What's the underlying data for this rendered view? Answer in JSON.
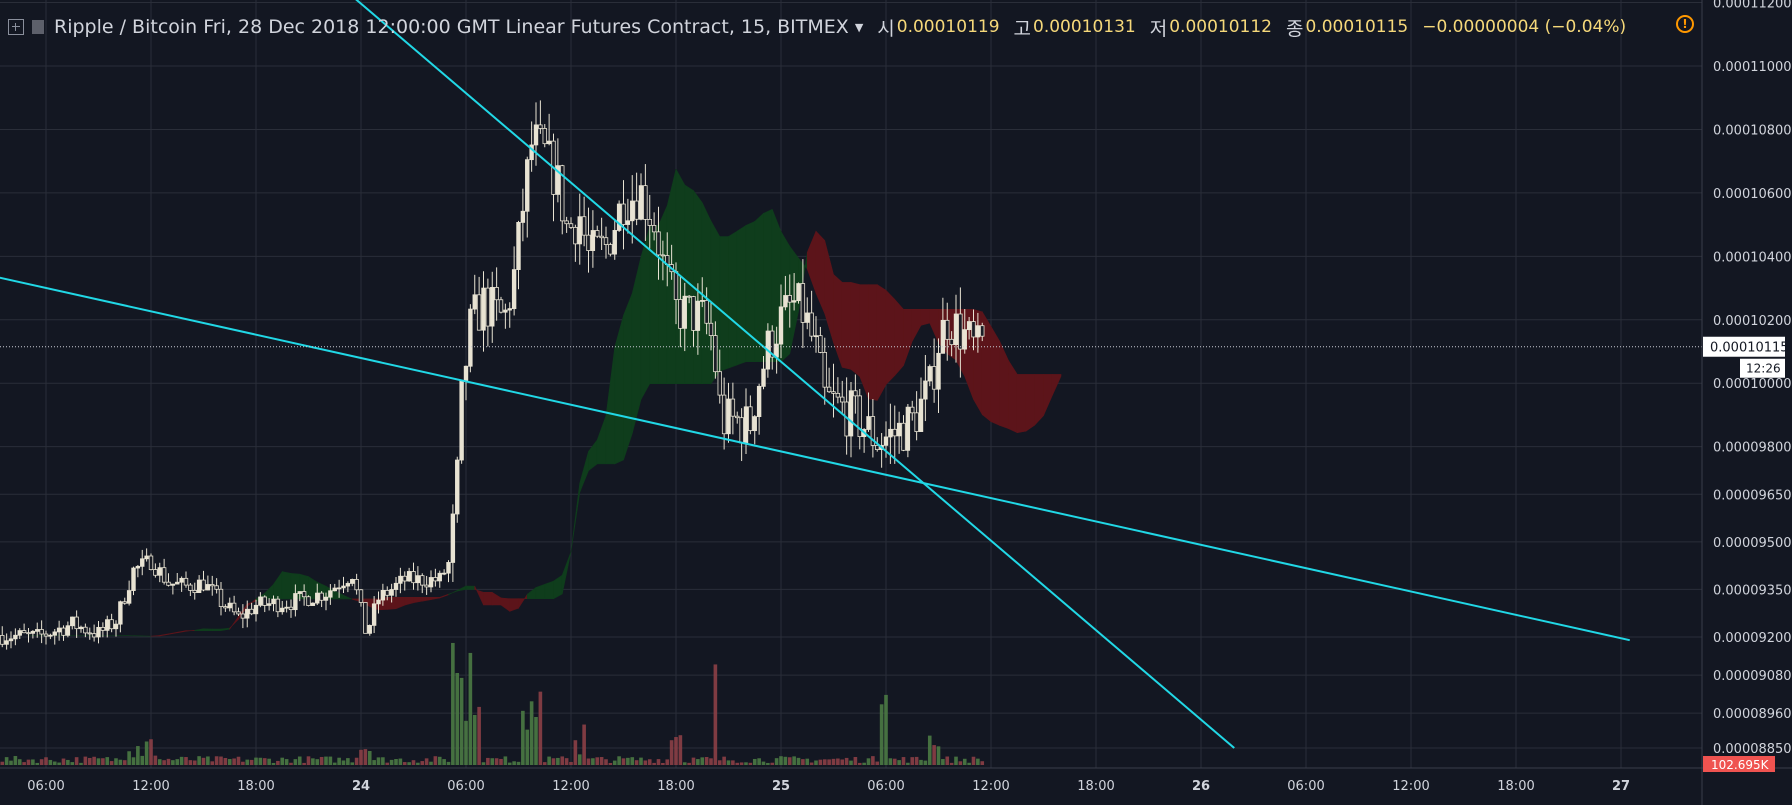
{
  "header": {
    "symbol": "Ripple / Bitcoin",
    "datetime": "Fri, 28 Dec 2018 12:00:00 GMT",
    "contract": "Linear Futures Contract, 15, BITMEX",
    "open_label": "시",
    "open": "0.00010119",
    "high_label": "고",
    "high": "0.00010131",
    "low_label": "저",
    "low": "0.00010112",
    "close_label": "종",
    "close": "0.00010115",
    "change": "−0.00000004 (−0.04%)",
    "warning": "!"
  },
  "colors": {
    "background": "#131722",
    "grid": "#2a2e39",
    "axis_text": "#d1d4dc",
    "candle": "#e8e3d3",
    "trendline": "#21d8e6",
    "cloud_bull": "#0f3d1c",
    "cloud_bear": "#5c141a",
    "volume_up": "#4b7a44",
    "volume_down": "#8c3f46",
    "last_price_bg": "#ffffff",
    "volume_badge": "#ef5350"
  },
  "chart_data": {
    "type": "candlestick",
    "ylim": [
      8.85e-05,
      0.000112
    ],
    "y_axis_ticks": [
      {
        "value": 0.000112,
        "label": "0.00011200"
      },
      {
        "value": 0.00011,
        "label": "0.00011000"
      },
      {
        "value": 0.000108,
        "label": "0.00010800"
      },
      {
        "value": 0.000106,
        "label": "0.00010600"
      },
      {
        "value": 0.000104,
        "label": "0.00010400"
      },
      {
        "value": 0.000102,
        "label": "0.00010200"
      },
      {
        "value": 0.0001,
        "label": "0.00010000"
      },
      {
        "value": 9.8e-05,
        "label": "0.00009800"
      },
      {
        "value": 9.65e-05,
        "label": "0.00009650"
      },
      {
        "value": 9.5e-05,
        "label": "0.00009500"
      },
      {
        "value": 9.35e-05,
        "label": "0.00009350"
      },
      {
        "value": 9.2e-05,
        "label": "0.00009200"
      },
      {
        "value": 9.08e-05,
        "label": "0.00009080"
      },
      {
        "value": 8.96e-05,
        "label": "0.00008960"
      },
      {
        "value": 8.85e-05,
        "label": "0.00008850"
      }
    ],
    "x_axis_ticks": [
      {
        "t": 6,
        "label": "06:00"
      },
      {
        "t": 12,
        "label": "12:00"
      },
      {
        "t": 18,
        "label": "18:00"
      },
      {
        "t": 24,
        "label": "24",
        "bold": true
      },
      {
        "t": 30,
        "label": "06:00"
      },
      {
        "t": 36,
        "label": "12:00"
      },
      {
        "t": 42,
        "label": "18:00"
      },
      {
        "t": 48,
        "label": "25",
        "bold": true
      },
      {
        "t": 54,
        "label": "06:00"
      },
      {
        "t": 60,
        "label": "12:00"
      },
      {
        "t": 66,
        "label": "18:00"
      },
      {
        "t": 72,
        "label": "26",
        "bold": true
      },
      {
        "t": 78,
        "label": "06:00"
      },
      {
        "t": 84,
        "label": "12:00"
      },
      {
        "t": 90,
        "label": "18:00"
      },
      {
        "t": 96,
        "label": "27",
        "bold": true
      }
    ],
    "last_price": {
      "value": 0.00010115,
      "label": "0.00010115",
      "countdown": "12:26"
    },
    "volume_badge": "102.695K",
    "price_path": [
      [
        3.5,
        9.205e-05
      ],
      [
        5.5,
        9.2e-05
      ],
      [
        7.5,
        9.24e-05
      ],
      [
        9.0,
        9.21e-05
      ],
      [
        10.0,
        9.25e-05
      ],
      [
        11.0,
        9.41e-05
      ],
      [
        12.0,
        9.44e-05
      ],
      [
        13.0,
        9.37e-05
      ],
      [
        14.0,
        9.36e-05
      ],
      [
        15.0,
        9.37e-05
      ],
      [
        16.0,
        9.31e-05
      ],
      [
        17.0,
        9.26e-05
      ],
      [
        18.0,
        9.3e-05
      ],
      [
        20.0,
        9.31e-05
      ],
      [
        22.0,
        9.34e-05
      ],
      [
        23.5,
        9.4e-05
      ],
      [
        24.3,
        9.21e-05
      ],
      [
        25.0,
        9.32e-05
      ],
      [
        26.5,
        9.38e-05
      ],
      [
        28.5,
        9.38e-05
      ],
      [
        29.0,
        9.43e-05
      ],
      [
        29.4,
        9.6e-05
      ],
      [
        29.8,
        9.99e-05
      ],
      [
        30.3,
        0.0001019
      ],
      [
        31.0,
        0.0001025
      ],
      [
        32.2,
        0.000102
      ],
      [
        32.8,
        0.0001035
      ],
      [
        33.3,
        0.0001058
      ],
      [
        33.8,
        0.0001077
      ],
      [
        34.5,
        0.0001072
      ],
      [
        35.2,
        0.0001064
      ],
      [
        35.8,
        0.0001048
      ],
      [
        36.5,
        0.0001053
      ],
      [
        37.0,
        0.000104
      ],
      [
        38.0,
        0.0001043
      ],
      [
        39.0,
        0.0001058
      ],
      [
        40.0,
        0.000106
      ],
      [
        40.8,
        0.000105
      ],
      [
        41.3,
        0.0001036
      ],
      [
        42.0,
        0.0001023
      ],
      [
        42.8,
        0.0001022
      ],
      [
        43.6,
        0.000102
      ],
      [
        44.1,
        0.0001013
      ],
      [
        44.6,
        9.88e-05
      ],
      [
        45.5,
        9.88e-05
      ],
      [
        46.2,
        9.86e-05
      ],
      [
        46.6,
        9.98e-05
      ],
      [
        47.3,
        0.0001012
      ],
      [
        48.0,
        0.000102
      ],
      [
        48.7,
        0.0001025
      ],
      [
        49.3,
        0.0001022
      ],
      [
        50.0,
        0.000101
      ],
      [
        50.5,
        9.95e-05
      ],
      [
        51.5,
        9.92e-05
      ],
      [
        52.5,
        9.88e-05
      ],
      [
        53.5,
        9.82e-05
      ],
      [
        54.5,
        9.84e-05
      ],
      [
        55.5,
        9.88e-05
      ],
      [
        56.5,
        9.98e-05
      ],
      [
        57.0,
        0.0001013
      ],
      [
        57.5,
        0.000102
      ],
      [
        58.5,
        0.0001015
      ],
      [
        59.2,
        0.000101
      ],
      [
        59.6,
        0.0001013
      ]
    ],
    "trendlines": [
      {
        "name": "",
        "from": [
          -0.5,
          0.0001038
        ],
        "to": [
          96.5,
          9.19e-05
        ]
      },
      {
        "name": "",
        "from": [
          23.5,
          0.0001122
        ],
        "to": [
          73.9,
          8.85e-05
        ]
      }
    ]
  }
}
